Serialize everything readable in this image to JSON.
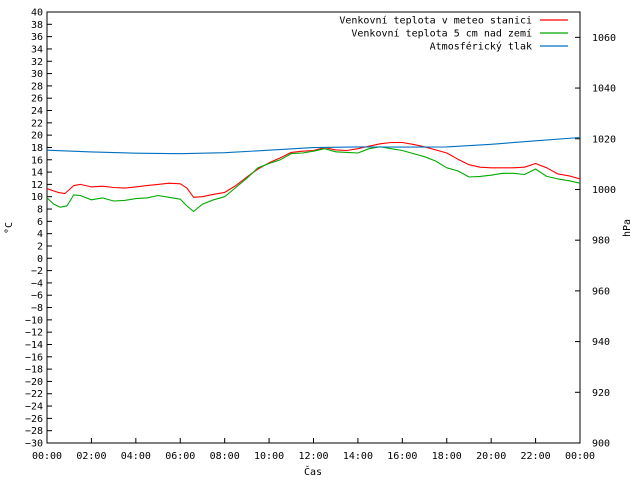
{
  "chart_data": {
    "type": "line",
    "xlabel": "Čas",
    "ylabel_left": "°C",
    "ylabel_right": "hPa",
    "x_tick_labels": [
      "00:00",
      "02:00",
      "04:00",
      "06:00",
      "08:00",
      "10:00",
      "12:00",
      "14:00",
      "16:00",
      "18:00",
      "20:00",
      "22:00",
      "00:00"
    ],
    "x_range_hours": [
      0,
      24
    ],
    "ylim_left": [
      -30,
      40
    ],
    "y_left_step": 2,
    "ylim_right": [
      900,
      1070
    ],
    "y_right_ticks": [
      900,
      920,
      940,
      960,
      980,
      1000,
      1020,
      1040,
      1060
    ],
    "legend_position": "top-right",
    "grid": false,
    "series": [
      {
        "name": "Venkovní teplota v meteo stanici",
        "axis": "left",
        "color": "#ff0000",
        "x": [
          0,
          0.5,
          0.8,
          1.2,
          1.5,
          2,
          2.5,
          3,
          3.5,
          4,
          4.5,
          5,
          5.5,
          6,
          6.3,
          6.6,
          7,
          7.5,
          8,
          8.5,
          9,
          9.5,
          10,
          10.5,
          11,
          11.5,
          12,
          12.5,
          13,
          13.5,
          14,
          14.5,
          15,
          15.5,
          16,
          16.5,
          17,
          17.5,
          18,
          18.5,
          19,
          19.5,
          20,
          20.5,
          21,
          21.5,
          22,
          22.5,
          23,
          23.5,
          24
        ],
        "values": [
          11.3,
          10.7,
          10.5,
          11.8,
          12.0,
          11.6,
          11.7,
          11.5,
          11.4,
          11.6,
          11.8,
          12.0,
          12.2,
          12.1,
          11.4,
          9.9,
          10.0,
          10.4,
          10.7,
          11.8,
          13.2,
          14.5,
          15.5,
          16.3,
          17.2,
          17.4,
          17.5,
          18.0,
          17.6,
          17.5,
          17.8,
          18.2,
          18.6,
          18.8,
          18.8,
          18.5,
          18.1,
          17.6,
          17.1,
          16.1,
          15.2,
          14.8,
          14.7,
          14.7,
          14.7,
          14.8,
          15.4,
          14.7,
          13.7,
          13.4,
          12.9
        ]
      },
      {
        "name": "Venkovní teplota 5 cm nad zemí",
        "axis": "left",
        "color": "#00aa00",
        "x": [
          0,
          0.3,
          0.6,
          0.9,
          1.2,
          1.5,
          2,
          2.5,
          3,
          3.5,
          4,
          4.5,
          5,
          5.5,
          6,
          6.3,
          6.6,
          7,
          7.5,
          8,
          8.5,
          9,
          9.5,
          10,
          10.5,
          11,
          11.5,
          12,
          12.5,
          13,
          13.5,
          14,
          14.5,
          15,
          15.5,
          16,
          16.5,
          17,
          17.5,
          18,
          18.5,
          19,
          19.5,
          20,
          20.5,
          21,
          21.5,
          22,
          22.5,
          23,
          23.5,
          24
        ],
        "values": [
          9.8,
          8.8,
          8.3,
          8.5,
          10.3,
          10.2,
          9.5,
          9.8,
          9.3,
          9.4,
          9.7,
          9.8,
          10.2,
          9.9,
          9.6,
          8.5,
          7.6,
          8.8,
          9.5,
          10.0,
          11.5,
          13.0,
          14.7,
          15.4,
          16.0,
          17.0,
          17.1,
          17.4,
          17.8,
          17.3,
          17.2,
          17.1,
          17.8,
          18.1,
          17.8,
          17.5,
          17.0,
          16.5,
          15.8,
          14.7,
          14.2,
          13.2,
          13.3,
          13.5,
          13.8,
          13.8,
          13.6,
          14.5,
          13.3,
          12.9,
          12.6,
          12.2
        ]
      },
      {
        "name": "Atmosférický tlak",
        "axis": "right",
        "color": "#0070c0",
        "x": [
          0,
          2,
          4,
          6,
          8,
          10,
          12,
          14,
          16,
          18,
          20,
          22,
          24
        ],
        "values": [
          1015.5,
          1014.8,
          1014.3,
          1014.1,
          1014.5,
          1015.5,
          1016.5,
          1016.8,
          1016.7,
          1016.8,
          1017.8,
          1019.2,
          1020.5
        ]
      }
    ]
  }
}
